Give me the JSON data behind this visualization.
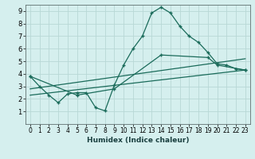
{
  "xlabel": "Humidex (Indice chaleur)",
  "bg_color": "#d5efee",
  "grid_color": "#b8d8d6",
  "line_color": "#1a6b5a",
  "xlim": [
    -0.5,
    23.5
  ],
  "ylim": [
    0,
    9.5
  ],
  "xtick_labels": [
    "0",
    "1",
    "2",
    "3",
    "4",
    "5",
    "6",
    "7",
    "8",
    "9",
    "10",
    "11",
    "12",
    "13",
    "14",
    "15",
    "16",
    "17",
    "18",
    "19",
    "20",
    "21",
    "22",
    "23"
  ],
  "xtick_vals": [
    0,
    1,
    2,
    3,
    4,
    5,
    6,
    7,
    8,
    9,
    10,
    11,
    12,
    13,
    14,
    15,
    16,
    17,
    18,
    19,
    20,
    21,
    22,
    23
  ],
  "ytick_vals": [
    1,
    2,
    3,
    4,
    5,
    6,
    7,
    8,
    9
  ],
  "main_x": [
    0,
    1,
    2,
    3,
    4,
    5,
    6,
    7,
    8,
    9,
    10,
    11,
    12,
    13,
    14,
    15,
    16,
    17,
    18,
    19,
    20,
    21,
    22,
    23
  ],
  "main_y": [
    3.8,
    3.0,
    2.3,
    1.7,
    2.4,
    2.5,
    2.5,
    1.3,
    1.05,
    3.1,
    4.7,
    6.0,
    7.0,
    8.85,
    9.3,
    8.85,
    7.8,
    7.0,
    6.5,
    5.7,
    4.8,
    4.7,
    4.4,
    4.3
  ],
  "line2_x": [
    0,
    23
  ],
  "line2_y": [
    2.8,
    5.2
  ],
  "line3_x": [
    0,
    23
  ],
  "line3_y": [
    2.3,
    4.3
  ],
  "line4_x": [
    0,
    5,
    9,
    14,
    19,
    20,
    23
  ],
  "line4_y": [
    3.8,
    2.3,
    2.8,
    5.5,
    5.3,
    4.7,
    4.3
  ]
}
